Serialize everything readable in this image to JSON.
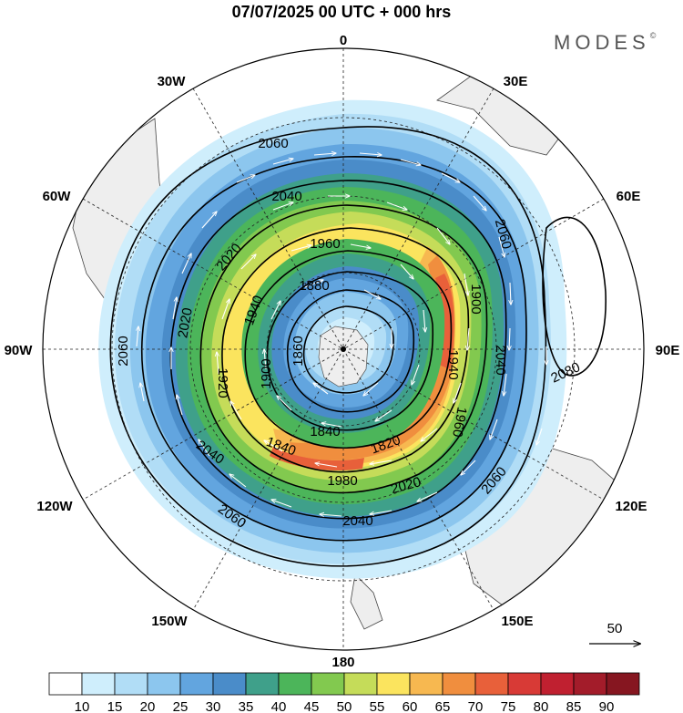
{
  "title": "07/07/2025  00 UTC  + 000 hrs",
  "logo": {
    "text": "MODES",
    "mark": "©"
  },
  "map": {
    "projection": "polar stereographic (south pole)",
    "longitude_labels": {
      "lon_0": "0",
      "lon_30e": "30E",
      "lon_60e": "60E",
      "lon_90e": "90E",
      "lon_120e": "120E",
      "lon_150e": "150E",
      "lon_180": "180",
      "lon_150w": "150W",
      "lon_120w": "120W",
      "lon_90w": "90W",
      "lon_60w": "60W",
      "lon_30w": "30W"
    },
    "contour_labels": [
      "2060",
      "2040",
      "2020",
      "1980",
      "1960",
      "1940",
      "1920",
      "1900",
      "1880",
      "1860",
      "1840",
      "1820",
      "2080"
    ],
    "reference_vector": {
      "label": "50"
    },
    "colors": {
      "land": "#eeeeee",
      "contour": "#000000",
      "vector": "#ffffff"
    }
  },
  "colorbar": {
    "labels": [
      "10",
      "15",
      "20",
      "25",
      "30",
      "35",
      "40",
      "45",
      "50",
      "55",
      "60",
      "65",
      "70",
      "75",
      "80",
      "85",
      "90"
    ],
    "colors": [
      "#ffffff",
      "#cfeefc",
      "#b1ddf6",
      "#8cc6ee",
      "#62a5df",
      "#4a8cc9",
      "#3fa08a",
      "#4cb55a",
      "#82c94f",
      "#c5dc59",
      "#fbe45e",
      "#f7b850",
      "#f08e3e",
      "#e8603a",
      "#d83a36",
      "#c02030",
      "#a31c2a",
      "#861620"
    ]
  }
}
